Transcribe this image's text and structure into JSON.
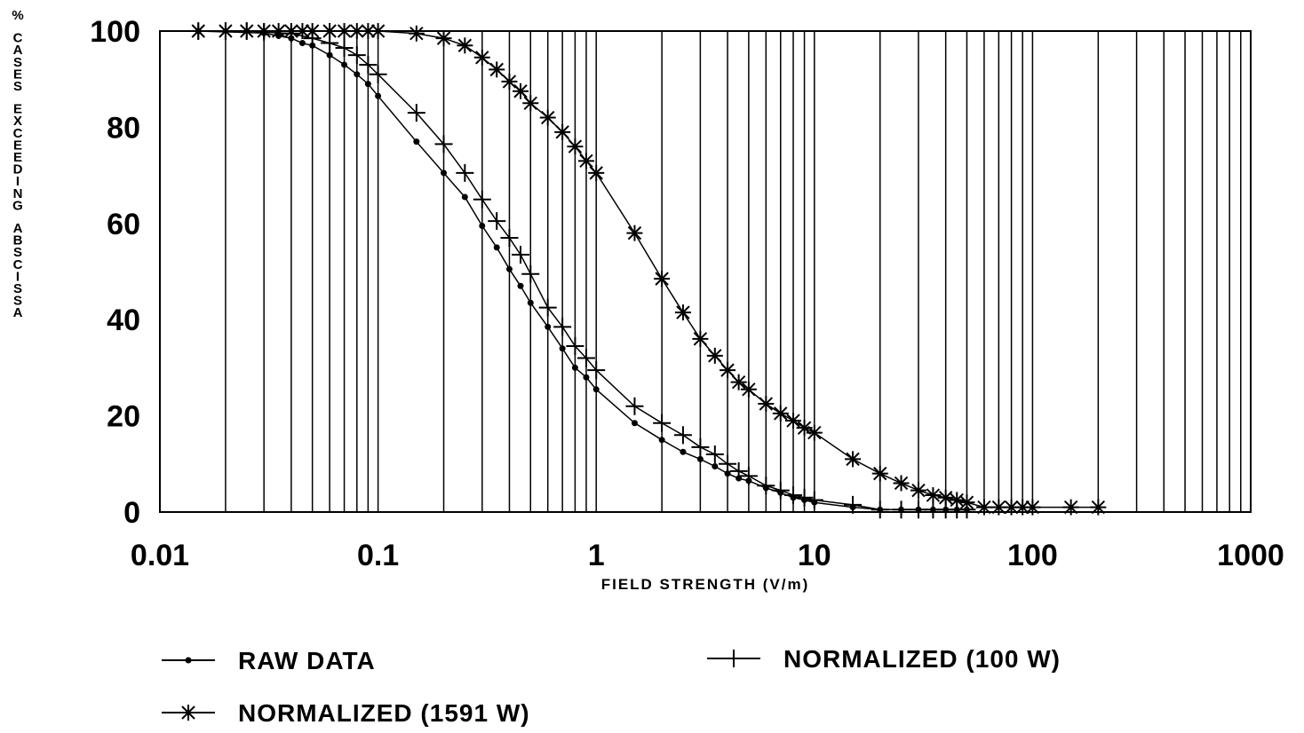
{
  "chart_data": {
    "type": "line",
    "x_scale": "log",
    "xlim": [
      0.01,
      1000
    ],
    "ylim": [
      0,
      100
    ],
    "xlabel": "FIELD STRENGTH (V/m)",
    "ylabel": "% CASES EXCEEDING ABSCISSA",
    "x_ticks": [
      {
        "value": 0.01,
        "label": "0.01"
      },
      {
        "value": 0.1,
        "label": "0.1"
      },
      {
        "value": 1,
        "label": "1"
      },
      {
        "value": 10,
        "label": "10"
      },
      {
        "value": 100,
        "label": "100"
      },
      {
        "value": 1000,
        "label": "1000"
      }
    ],
    "y_ticks": [
      {
        "value": 0,
        "label": "0"
      },
      {
        "value": 20,
        "label": "20"
      },
      {
        "value": 40,
        "label": "40"
      },
      {
        "value": 60,
        "label": "60"
      },
      {
        "value": 80,
        "label": "80"
      },
      {
        "value": 100,
        "label": "100"
      }
    ],
    "grid": "vertical log grid lines",
    "legend_position": "bottom",
    "series": [
      {
        "name": "RAW DATA",
        "marker": "dot",
        "x": [
          0.015,
          0.03,
          0.035,
          0.04,
          0.045,
          0.05,
          0.06,
          0.07,
          0.08,
          0.09,
          0.1,
          0.15,
          0.2,
          0.25,
          0.3,
          0.35,
          0.4,
          0.45,
          0.5,
          0.6,
          0.7,
          0.8,
          0.9,
          1.0,
          1.5,
          2.0,
          2.5,
          3.0,
          3.5,
          4.0,
          4.5,
          5.0,
          6.0,
          7.0,
          8.0,
          9.0,
          10,
          15,
          20,
          25,
          30,
          35,
          40,
          45,
          50
        ],
        "y": [
          100,
          99.6,
          99,
          98.5,
          97.5,
          97,
          95,
          93,
          91,
          89,
          86.5,
          77,
          70.5,
          65.5,
          59.5,
          55,
          50.5,
          47,
          43.5,
          38.5,
          34,
          30,
          28,
          25.5,
          18.5,
          15,
          12.5,
          11,
          9.5,
          8,
          7,
          6.5,
          5,
          4,
          3,
          2.5,
          2,
          1,
          0.5,
          0.5,
          0.5,
          0.5,
          0.5,
          0.5,
          0.5
        ]
      },
      {
        "name": "NORMALIZED (100 W)",
        "marker": "plus",
        "x": [
          0.015,
          0.02,
          0.025,
          0.03,
          0.04,
          0.05,
          0.06,
          0.07,
          0.08,
          0.09,
          0.1,
          0.15,
          0.2,
          0.25,
          0.3,
          0.35,
          0.4,
          0.45,
          0.5,
          0.6,
          0.7,
          0.8,
          0.9,
          1.0,
          1.5,
          2.0,
          2.5,
          3.0,
          3.5,
          4.0,
          4.5,
          5.0,
          6.0,
          7.0,
          8.0,
          9.0,
          10,
          15,
          20,
          25,
          30,
          35,
          40,
          45,
          50
        ],
        "y": [
          100,
          100,
          100,
          99.8,
          99.5,
          98.5,
          97.5,
          96.5,
          95,
          93,
          91,
          83,
          76.5,
          70.5,
          65,
          60.5,
          57,
          53.5,
          49.5,
          42.5,
          38.5,
          34.5,
          32,
          29.5,
          22,
          18.5,
          16,
          13.5,
          12,
          10,
          8.5,
          7.5,
          5.5,
          4.5,
          3.5,
          3,
          2.5,
          1.5,
          0.5,
          0.5,
          0.5,
          0.5,
          0.5,
          0.5,
          0.5
        ]
      },
      {
        "name": "NORMALIZED (1591 W)",
        "marker": "asterisk",
        "x": [
          0.015,
          0.02,
          0.025,
          0.03,
          0.035,
          0.04,
          0.045,
          0.05,
          0.06,
          0.07,
          0.08,
          0.09,
          0.1,
          0.15,
          0.2,
          0.25,
          0.3,
          0.35,
          0.4,
          0.45,
          0.5,
          0.6,
          0.7,
          0.8,
          0.9,
          1.0,
          1.5,
          2.0,
          2.5,
          3.0,
          3.5,
          4.0,
          4.5,
          5.0,
          6.0,
          7.0,
          8.0,
          9.0,
          10,
          15,
          20,
          25,
          30,
          35,
          40,
          45,
          50,
          60,
          70,
          80,
          90,
          100,
          150,
          200
        ],
        "y": [
          100,
          100,
          100,
          100,
          100,
          100,
          100,
          100,
          100,
          100,
          100,
          100,
          100,
          99.5,
          98.5,
          97,
          94.5,
          92,
          89.5,
          87.5,
          85,
          82,
          79,
          76,
          73,
          70.5,
          58,
          48.5,
          41.5,
          36,
          32.5,
          29.5,
          27,
          25.5,
          22.5,
          20.5,
          19,
          17.5,
          16.5,
          11,
          8,
          6,
          4.5,
          3.5,
          3,
          2.5,
          2,
          1,
          1,
          1,
          1,
          1,
          1,
          1
        ]
      }
    ]
  }
}
